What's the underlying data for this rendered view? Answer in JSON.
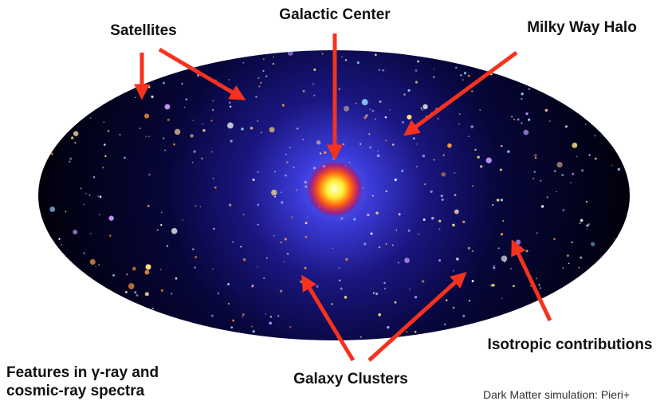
{
  "labels": {
    "satellites": "Satellites",
    "galactic_center": "Galactic Center",
    "milky_way_halo": "Milky Way Halo",
    "isotropic": "Isotropic contributions",
    "galaxy_clusters": "Galaxy Clusters",
    "features": [
      "Features in γ-ray and",
      "cosmic-ray spectra"
    ],
    "credit": "Dark Matter simulation: Pieri+"
  }
}
